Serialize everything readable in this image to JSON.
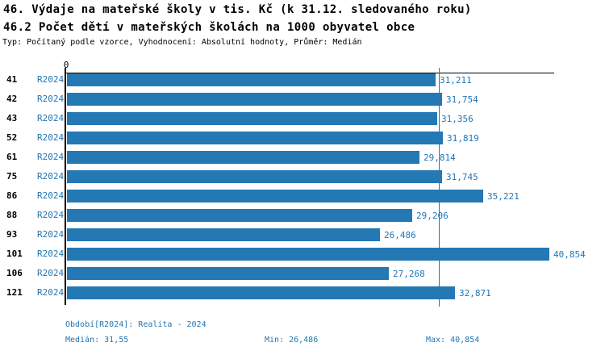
{
  "header": {
    "title_line1": "46. Výdaje na mateřské školy v tis. Kč (k 31.12. sledovaného roku)",
    "title_line2": "46.2 Počet dětí v mateřských školách na 1000 obyvatel obce",
    "subtitle": "Typ: Počítaný podle vzorce, Vyhodnocení: Absolutní hodnoty, Průměr: Medián"
  },
  "colors": {
    "bar": "#2478b4",
    "blue_text": "#2176b4",
    "axis": "#000000"
  },
  "chart_data": {
    "type": "bar",
    "orientation": "horizontal",
    "title": "46. Výdaje na mateřské školy v tis. Kč (k 31.12. sledovaného roku)",
    "axis_zero_label": "0",
    "series_label": "R2024",
    "categories": [
      "41",
      "42",
      "43",
      "52",
      "61",
      "75",
      "86",
      "88",
      "93",
      "101",
      "106",
      "121"
    ],
    "values": [
      31211,
      31754,
      31356,
      31819,
      29814,
      31745,
      35221,
      29206,
      26486,
      40854,
      27268,
      32871
    ],
    "value_labels": [
      "31,211",
      "31,754",
      "31,356",
      "31,819",
      "29,814",
      "31,745",
      "35,221",
      "29,206",
      "26,486",
      "40,854",
      "27,268",
      "32,871"
    ],
    "xlim": [
      0,
      41320
    ],
    "median_value": 31550,
    "median_line": true,
    "legend_position": "none",
    "grid": false
  },
  "footer": {
    "period": "Období[R2024]: Realita - 2024",
    "median": "Medián: 31,55",
    "min": "Min: 26,486",
    "max": "Max: 40,854"
  }
}
